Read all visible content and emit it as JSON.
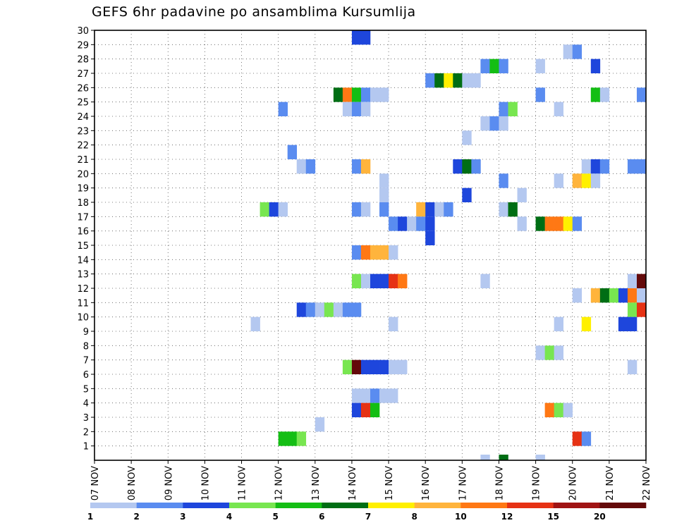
{
  "chart_data": {
    "type": "heatmap",
    "title": "GEFS 6hr padavine po ansamblima Kursumlija",
    "x_ticks": [
      "07 NOV",
      "08 NOV",
      "09 NOV",
      "10 NOV",
      "11 NOV",
      "12 NOV",
      "13 NOV",
      "14 NOV",
      "15 NOV",
      "16 NOV",
      "17 NOV",
      "18 NOV",
      "19 NOV",
      "20 NOV",
      "21 NOV",
      "22 NOV"
    ],
    "y_ticks": [
      "1",
      "2",
      "3",
      "4",
      "5",
      "6",
      "7",
      "8",
      "9",
      "10",
      "11",
      "12",
      "13",
      "14",
      "15",
      "16",
      "17",
      "18",
      "19",
      "20",
      "21",
      "22",
      "23",
      "24",
      "25",
      "26",
      "27",
      "28",
      "29",
      "30"
    ],
    "xlim_days": [
      7,
      22
    ],
    "ylim": [
      0,
      30
    ],
    "grid": true,
    "colorbar": {
      "labels": [
        "1",
        "2",
        "3",
        "4",
        "5",
        "6",
        "7",
        "8",
        "10",
        "12",
        "15",
        "20"
      ],
      "colors": [
        "#b4c8f0",
        "#5a8cf0",
        "#1e46dc",
        "#78e650",
        "#14be14",
        "#006e14",
        "#fff000",
        "#ffb43c",
        "#ff7814",
        "#e63214",
        "#a01414",
        "#640a0a"
      ]
    },
    "cells": [
      {
        "m": 30,
        "d": 14.0,
        "c": 3
      },
      {
        "m": 30,
        "d": 14.25,
        "c": 3
      },
      {
        "m": 29,
        "d": 19.75,
        "c": 1
      },
      {
        "m": 29,
        "d": 20.0,
        "c": 2
      },
      {
        "m": 28,
        "d": 17.5,
        "c": 2
      },
      {
        "m": 28,
        "d": 17.75,
        "c": 5
      },
      {
        "m": 28,
        "d": 18.0,
        "c": 2
      },
      {
        "m": 28,
        "d": 19.0,
        "c": 1
      },
      {
        "m": 28,
        "d": 20.5,
        "c": 3
      },
      {
        "m": 27,
        "d": 16.0,
        "c": 2
      },
      {
        "m": 27,
        "d": 16.25,
        "c": 6
      },
      {
        "m": 27,
        "d": 16.5,
        "c": 7
      },
      {
        "m": 27,
        "d": 16.75,
        "c": 6
      },
      {
        "m": 27,
        "d": 17.0,
        "c": 1
      },
      {
        "m": 27,
        "d": 17.25,
        "c": 1
      },
      {
        "m": 26,
        "d": 13.5,
        "c": 6
      },
      {
        "m": 26,
        "d": 13.75,
        "c": 9
      },
      {
        "m": 26,
        "d": 14.0,
        "c": 5
      },
      {
        "m": 26,
        "d": 14.25,
        "c": 2
      },
      {
        "m": 26,
        "d": 14.5,
        "c": 1
      },
      {
        "m": 26,
        "d": 14.75,
        "c": 1
      },
      {
        "m": 26,
        "d": 19.0,
        "c": 2
      },
      {
        "m": 26,
        "d": 20.5,
        "c": 5
      },
      {
        "m": 26,
        "d": 20.75,
        "c": 1
      },
      {
        "m": 26,
        "d": 21.75,
        "c": 2
      },
      {
        "m": 25,
        "d": 12.0,
        "c": 2
      },
      {
        "m": 25,
        "d": 13.75,
        "c": 1
      },
      {
        "m": 25,
        "d": 14.0,
        "c": 2
      },
      {
        "m": 25,
        "d": 14.25,
        "c": 1
      },
      {
        "m": 25,
        "d": 18.0,
        "c": 2
      },
      {
        "m": 25,
        "d": 18.25,
        "c": 4
      },
      {
        "m": 25,
        "d": 19.5,
        "c": 1
      },
      {
        "m": 24,
        "d": 17.5,
        "c": 1
      },
      {
        "m": 24,
        "d": 17.75,
        "c": 2
      },
      {
        "m": 24,
        "d": 18.0,
        "c": 1
      },
      {
        "m": 23,
        "d": 17.0,
        "c": 1
      },
      {
        "m": 22,
        "d": 12.25,
        "c": 2
      },
      {
        "m": 21,
        "d": 12.5,
        "c": 1
      },
      {
        "m": 21,
        "d": 12.75,
        "c": 2
      },
      {
        "m": 21,
        "d": 14.0,
        "c": 2
      },
      {
        "m": 21,
        "d": 14.25,
        "c": 8
      },
      {
        "m": 21,
        "d": 16.75,
        "c": 3
      },
      {
        "m": 21,
        "d": 17.0,
        "c": 6
      },
      {
        "m": 21,
        "d": 17.25,
        "c": 2
      },
      {
        "m": 21,
        "d": 20.25,
        "c": 1
      },
      {
        "m": 21,
        "d": 20.5,
        "c": 3
      },
      {
        "m": 21,
        "d": 20.75,
        "c": 2
      },
      {
        "m": 21,
        "d": 21.5,
        "c": 2
      },
      {
        "m": 21,
        "d": 21.75,
        "c": 2
      },
      {
        "m": 20,
        "d": 14.75,
        "c": 1
      },
      {
        "m": 20,
        "d": 18.0,
        "c": 2
      },
      {
        "m": 20,
        "d": 19.5,
        "c": 1
      },
      {
        "m": 20,
        "d": 20.0,
        "c": 8
      },
      {
        "m": 20,
        "d": 20.25,
        "c": 7
      },
      {
        "m": 20,
        "d": 20.5,
        "c": 1
      },
      {
        "m": 19,
        "d": 14.75,
        "c": 1
      },
      {
        "m": 19,
        "d": 17.0,
        "c": 3
      },
      {
        "m": 19,
        "d": 18.5,
        "c": 1
      },
      {
        "m": 18,
        "d": 11.5,
        "c": 4
      },
      {
        "m": 18,
        "d": 11.75,
        "c": 3
      },
      {
        "m": 18,
        "d": 12.0,
        "c": 1
      },
      {
        "m": 18,
        "d": 14.0,
        "c": 2
      },
      {
        "m": 18,
        "d": 14.25,
        "c": 1
      },
      {
        "m": 18,
        "d": 14.75,
        "c": 2
      },
      {
        "m": 18,
        "d": 15.75,
        "c": 8
      },
      {
        "m": 18,
        "d": 16.0,
        "c": 3
      },
      {
        "m": 18,
        "d": 16.25,
        "c": 1
      },
      {
        "m": 18,
        "d": 16.5,
        "c": 2
      },
      {
        "m": 18,
        "d": 18.0,
        "c": 1
      },
      {
        "m": 18,
        "d": 18.25,
        "c": 6
      },
      {
        "m": 17,
        "d": 15.0,
        "c": 2
      },
      {
        "m": 17,
        "d": 15.25,
        "c": 3
      },
      {
        "m": 17,
        "d": 15.5,
        "c": 1
      },
      {
        "m": 17,
        "d": 15.75,
        "c": 2
      },
      {
        "m": 17,
        "d": 16.0,
        "c": 3
      },
      {
        "m": 17,
        "d": 18.5,
        "c": 1
      },
      {
        "m": 17,
        "d": 19.0,
        "c": 6
      },
      {
        "m": 17,
        "d": 19.25,
        "c": 9
      },
      {
        "m": 17,
        "d": 19.5,
        "c": 9
      },
      {
        "m": 17,
        "d": 19.75,
        "c": 7
      },
      {
        "m": 17,
        "d": 20.0,
        "c": 2
      },
      {
        "m": 16,
        "d": 16.0,
        "c": 3
      },
      {
        "m": 15,
        "d": 14.0,
        "c": 2
      },
      {
        "m": 15,
        "d": 14.25,
        "c": 9
      },
      {
        "m": 15,
        "d": 14.5,
        "c": 8
      },
      {
        "m": 15,
        "d": 14.75,
        "c": 8
      },
      {
        "m": 15,
        "d": 15.0,
        "c": 1
      },
      {
        "m": 13,
        "d": 14.0,
        "c": 4
      },
      {
        "m": 13,
        "d": 14.25,
        "c": 1
      },
      {
        "m": 13,
        "d": 14.5,
        "c": 3
      },
      {
        "m": 13,
        "d": 14.75,
        "c": 3
      },
      {
        "m": 13,
        "d": 15.0,
        "c": 10
      },
      {
        "m": 13,
        "d": 15.25,
        "c": 9
      },
      {
        "m": 13,
        "d": 17.5,
        "c": 1
      },
      {
        "m": 13,
        "d": 21.5,
        "c": 1
      },
      {
        "m": 13,
        "d": 21.75,
        "c": 12
      },
      {
        "m": 12,
        "d": 20.0,
        "c": 1
      },
      {
        "m": 12,
        "d": 20.5,
        "c": 8
      },
      {
        "m": 12,
        "d": 20.75,
        "c": 6
      },
      {
        "m": 12,
        "d": 21.0,
        "c": 4
      },
      {
        "m": 12,
        "d": 21.25,
        "c": 3
      },
      {
        "m": 12,
        "d": 21.5,
        "c": 9
      },
      {
        "m": 12,
        "d": 21.75,
        "c": 1
      },
      {
        "m": 11,
        "d": 12.5,
        "c": 3
      },
      {
        "m": 11,
        "d": 12.75,
        "c": 2
      },
      {
        "m": 11,
        "d": 13.0,
        "c": 1
      },
      {
        "m": 11,
        "d": 13.25,
        "c": 4
      },
      {
        "m": 11,
        "d": 13.5,
        "c": 1
      },
      {
        "m": 11,
        "d": 13.75,
        "c": 2
      },
      {
        "m": 11,
        "d": 14.0,
        "c": 2
      },
      {
        "m": 11,
        "d": 21.5,
        "c": 4
      },
      {
        "m": 11,
        "d": 21.75,
        "c": 10
      },
      {
        "m": 10,
        "d": 11.25,
        "c": 1
      },
      {
        "m": 10,
        "d": 15.0,
        "c": 1
      },
      {
        "m": 10,
        "d": 19.5,
        "c": 1
      },
      {
        "m": 10,
        "d": 20.25,
        "c": 7
      },
      {
        "m": 10,
        "d": 21.25,
        "c": 3
      },
      {
        "m": 10,
        "d": 21.5,
        "c": 3
      },
      {
        "m": 8,
        "d": 19.0,
        "c": 1
      },
      {
        "m": 8,
        "d": 19.25,
        "c": 4
      },
      {
        "m": 8,
        "d": 19.5,
        "c": 1
      },
      {
        "m": 7,
        "d": 13.75,
        "c": 4
      },
      {
        "m": 7,
        "d": 14.0,
        "c": 12
      },
      {
        "m": 7,
        "d": 14.25,
        "c": 3
      },
      {
        "m": 7,
        "d": 14.5,
        "c": 3
      },
      {
        "m": 7,
        "d": 14.75,
        "c": 3
      },
      {
        "m": 7,
        "d": 15.0,
        "c": 1
      },
      {
        "m": 7,
        "d": 15.25,
        "c": 1
      },
      {
        "m": 7,
        "d": 21.5,
        "c": 1
      },
      {
        "m": 5,
        "d": 14.0,
        "c": 1
      },
      {
        "m": 5,
        "d": 14.25,
        "c": 1
      },
      {
        "m": 5,
        "d": 14.5,
        "c": 2
      },
      {
        "m": 5,
        "d": 14.75,
        "c": 1
      },
      {
        "m": 5,
        "d": 15.0,
        "c": 1
      },
      {
        "m": 4,
        "d": 14.0,
        "c": 3
      },
      {
        "m": 4,
        "d": 14.25,
        "c": 10
      },
      {
        "m": 4,
        "d": 14.5,
        "c": 5
      },
      {
        "m": 4,
        "d": 19.25,
        "c": 9
      },
      {
        "m": 4,
        "d": 19.5,
        "c": 4
      },
      {
        "m": 4,
        "d": 19.75,
        "c": 1
      },
      {
        "m": 3,
        "d": 13.0,
        "c": 1
      },
      {
        "m": 2,
        "d": 12.0,
        "c": 5
      },
      {
        "m": 2,
        "d": 12.25,
        "c": 5
      },
      {
        "m": 2,
        "d": 12.5,
        "c": 4
      },
      {
        "m": 2,
        "d": 20.0,
        "c": 10
      },
      {
        "m": 2,
        "d": 20.25,
        "c": 2
      },
      {
        "m": 0,
        "d": 17.5,
        "c": 1
      },
      {
        "m": 0,
        "d": 18.0,
        "c": 6
      },
      {
        "m": 0,
        "d": 19.0,
        "c": 1
      }
    ]
  }
}
